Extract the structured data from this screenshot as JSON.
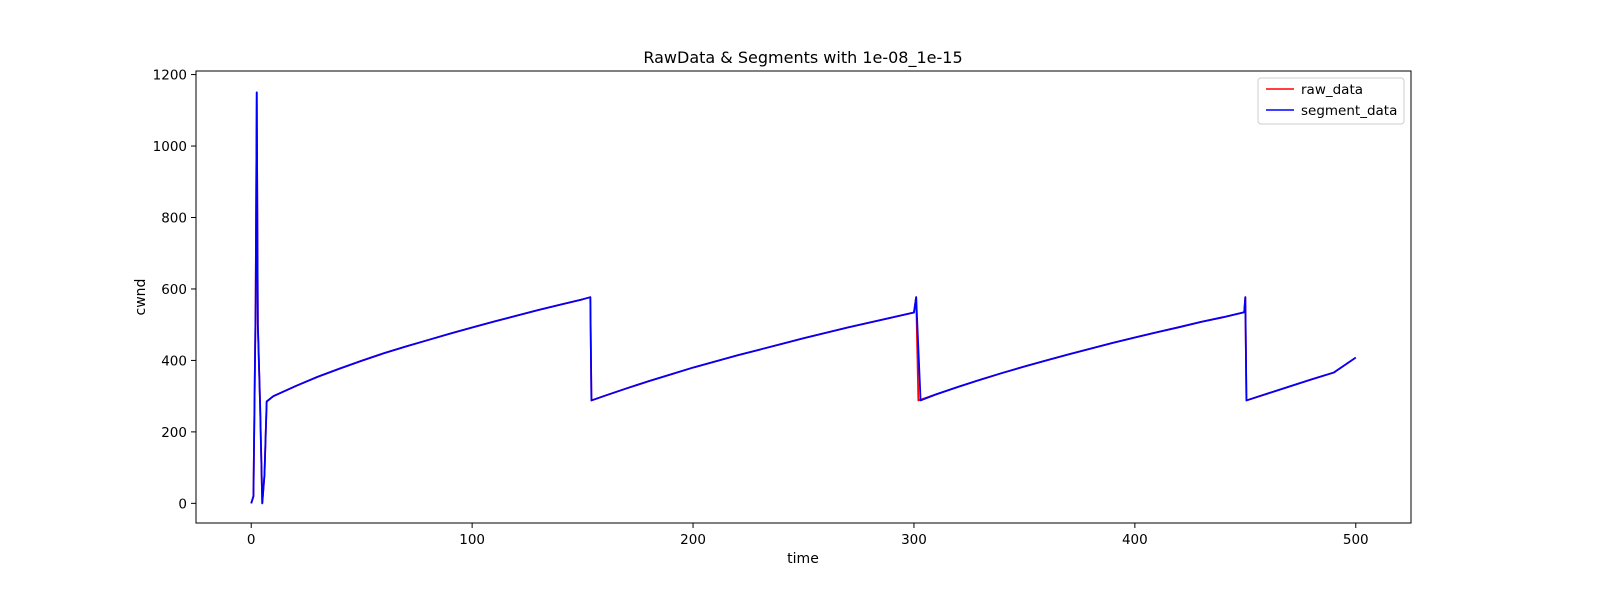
{
  "chart_data": {
    "type": "line",
    "title": "RawData & Segments with 1e-08_1e-15",
    "xlabel": "time",
    "ylabel": "cwnd",
    "xlim": [
      -25,
      525
    ],
    "ylim": [
      -55,
      1210
    ],
    "xticks": [
      0,
      100,
      200,
      300,
      400,
      500
    ],
    "yticks": [
      0,
      200,
      400,
      600,
      800,
      1000,
      1200
    ],
    "grid": false,
    "legend_position": "top-right",
    "series": [
      {
        "name": "raw_data",
        "color": "#ff0000",
        "points": [
          [
            0,
            0
          ],
          [
            1,
            20
          ],
          [
            2,
            560
          ],
          [
            2.5,
            1150
          ],
          [
            3,
            500
          ],
          [
            4,
            280
          ],
          [
            5,
            0
          ],
          [
            6,
            80
          ],
          [
            7,
            285
          ],
          [
            10,
            300
          ],
          [
            20,
            328
          ],
          [
            30,
            354
          ],
          [
            40,
            377
          ],
          [
            50,
            399
          ],
          [
            60,
            420
          ],
          [
            70,
            439
          ],
          [
            80,
            457
          ],
          [
            90,
            475
          ],
          [
            100,
            492
          ],
          [
            110,
            509
          ],
          [
            120,
            525
          ],
          [
            130,
            541
          ],
          [
            140,
            556
          ],
          [
            150,
            571
          ],
          [
            153.5,
            577
          ],
          [
            154,
            288
          ],
          [
            160,
            301
          ],
          [
            170,
            322
          ],
          [
            180,
            342
          ],
          [
            190,
            361
          ],
          [
            200,
            380
          ],
          [
            210,
            397
          ],
          [
            220,
            414
          ],
          [
            230,
            430
          ],
          [
            240,
            446
          ],
          [
            250,
            462
          ],
          [
            260,
            477
          ],
          [
            270,
            492
          ],
          [
            280,
            506
          ],
          [
            290,
            520
          ],
          [
            300,
            534
          ],
          [
            301,
            577
          ],
          [
            302,
            288
          ],
          [
            310,
            305
          ],
          [
            320,
            326
          ],
          [
            330,
            346
          ],
          [
            340,
            365
          ],
          [
            350,
            383
          ],
          [
            360,
            400
          ],
          [
            370,
            417
          ],
          [
            380,
            433
          ],
          [
            390,
            449
          ],
          [
            400,
            464
          ],
          [
            410,
            479
          ],
          [
            420,
            493
          ],
          [
            430,
            508
          ],
          [
            440,
            521
          ],
          [
            449.5,
            535
          ],
          [
            450,
            577
          ],
          [
            450.5,
            288
          ],
          [
            460,
            307
          ],
          [
            470,
            327
          ],
          [
            480,
            347
          ],
          [
            490,
            366
          ],
          [
            500,
            408
          ]
        ]
      },
      {
        "name": "segment_data",
        "color": "#0000ff",
        "points": [
          [
            0,
            0
          ],
          [
            1,
            20
          ],
          [
            2,
            560
          ],
          [
            2.5,
            1150
          ],
          [
            3,
            500
          ],
          [
            4,
            280
          ],
          [
            5,
            0
          ],
          [
            6,
            80
          ],
          [
            7,
            285
          ],
          [
            10,
            300
          ],
          [
            20,
            328
          ],
          [
            30,
            354
          ],
          [
            40,
            377
          ],
          [
            50,
            399
          ],
          [
            60,
            420
          ],
          [
            70,
            439
          ],
          [
            80,
            457
          ],
          [
            90,
            475
          ],
          [
            100,
            492
          ],
          [
            110,
            509
          ],
          [
            120,
            525
          ],
          [
            130,
            541
          ],
          [
            140,
            556
          ],
          [
            150,
            571
          ],
          [
            153.5,
            577
          ],
          [
            154,
            288
          ],
          [
            160,
            301
          ],
          [
            170,
            322
          ],
          [
            180,
            342
          ],
          [
            190,
            361
          ],
          [
            200,
            380
          ],
          [
            210,
            397
          ],
          [
            220,
            414
          ],
          [
            230,
            430
          ],
          [
            240,
            446
          ],
          [
            250,
            462
          ],
          [
            260,
            477
          ],
          [
            270,
            492
          ],
          [
            280,
            506
          ],
          [
            290,
            520
          ],
          [
            300,
            534
          ],
          [
            301,
            577
          ],
          [
            303,
            288
          ],
          [
            310,
            305
          ],
          [
            320,
            326
          ],
          [
            330,
            346
          ],
          [
            340,
            365
          ],
          [
            350,
            383
          ],
          [
            360,
            400
          ],
          [
            370,
            417
          ],
          [
            380,
            433
          ],
          [
            390,
            449
          ],
          [
            400,
            464
          ],
          [
            410,
            479
          ],
          [
            420,
            493
          ],
          [
            430,
            508
          ],
          [
            440,
            521
          ],
          [
            449.5,
            535
          ],
          [
            450,
            577
          ],
          [
            450.5,
            288
          ],
          [
            460,
            307
          ],
          [
            470,
            327
          ],
          [
            480,
            347
          ],
          [
            490,
            366
          ],
          [
            500,
            408
          ]
        ]
      }
    ]
  }
}
